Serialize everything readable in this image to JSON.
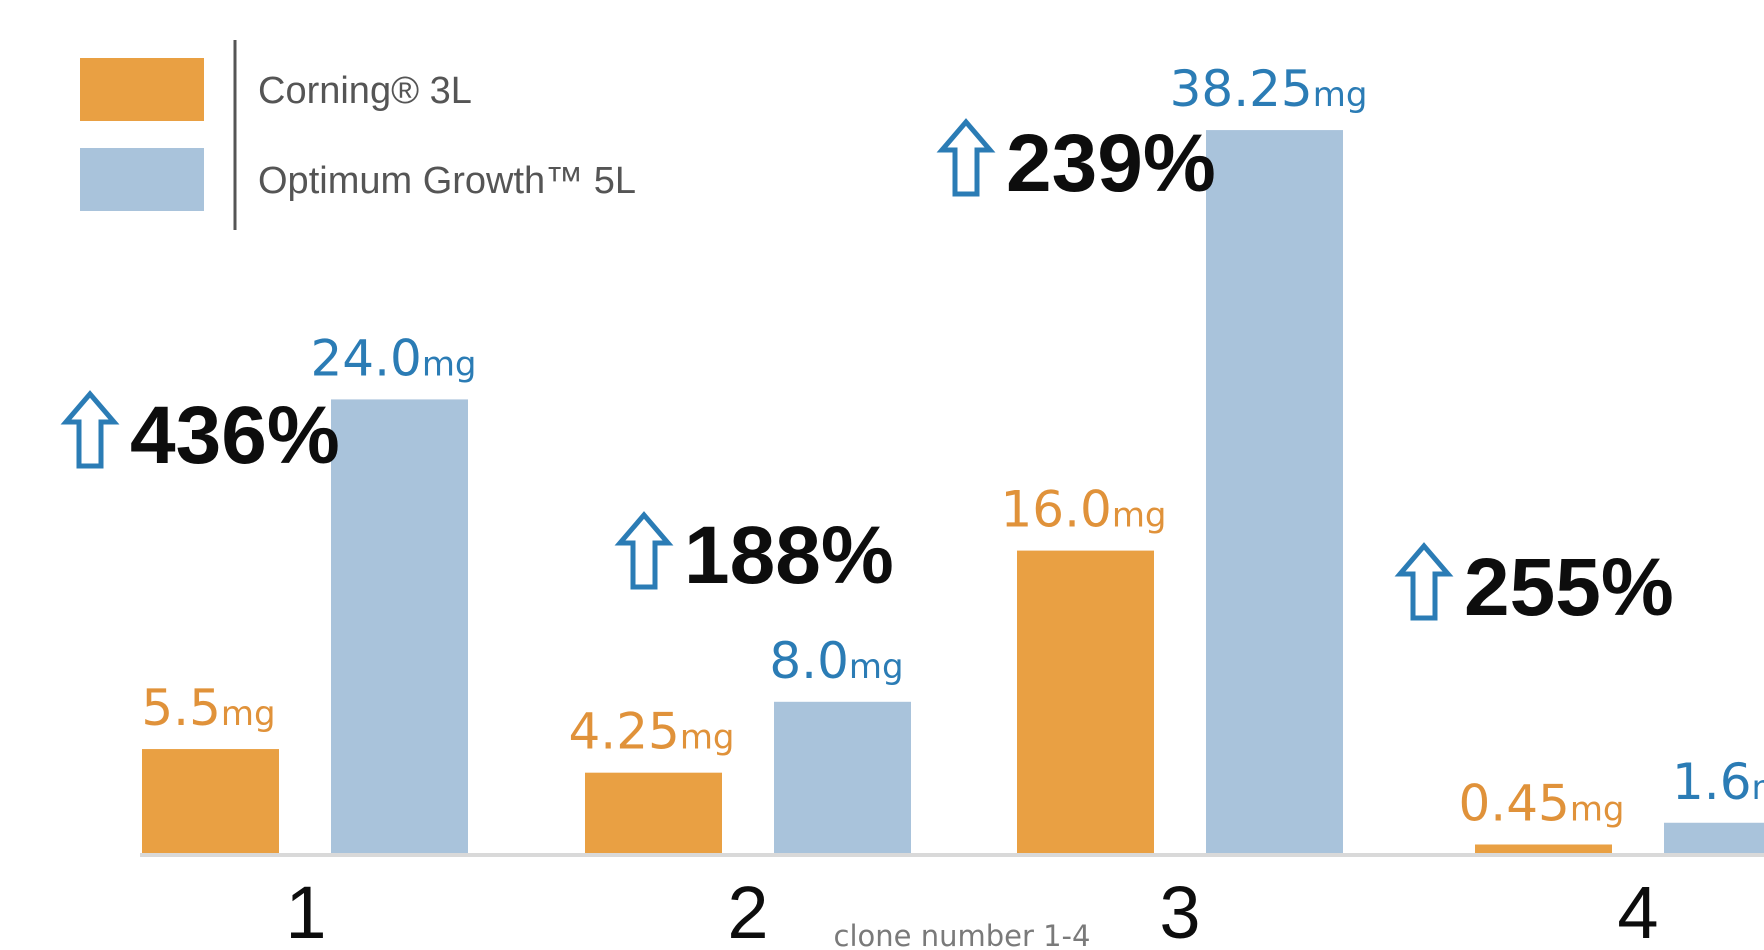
{
  "colors": {
    "corning": "#e9a043",
    "optimum": "#a9c3db",
    "corning_label": "#e0923a",
    "optimum_label": "#2b7cb5",
    "percent_text": "#0d0d0d",
    "arrow": "#2b7cb5",
    "axis": "#d9d9d9",
    "legend_divider": "#555555"
  },
  "caption": "clone number 1-4",
  "chart_data": {
    "type": "bar",
    "title": "",
    "xlabel": "clone number 1-4",
    "ylabel": "",
    "unit": "mg",
    "categories": [
      "1",
      "2",
      "3",
      "4"
    ],
    "series": [
      {
        "name": "Corning® 3L",
        "values": [
          5.5,
          4.25,
          16.0,
          0.45
        ],
        "labels": [
          "5.5",
          "4.25",
          "16.0",
          "0.45"
        ]
      },
      {
        "name": "Optimum Growth™ 5L",
        "values": [
          24.0,
          8.0,
          38.25,
          1.6
        ],
        "labels": [
          "24.0",
          "8.0",
          "38.25",
          "1.6"
        ]
      }
    ],
    "increase_labels": [
      "436%",
      "188%",
      "239%",
      "255%"
    ],
    "legend_position": "top-left",
    "grid": false
  }
}
